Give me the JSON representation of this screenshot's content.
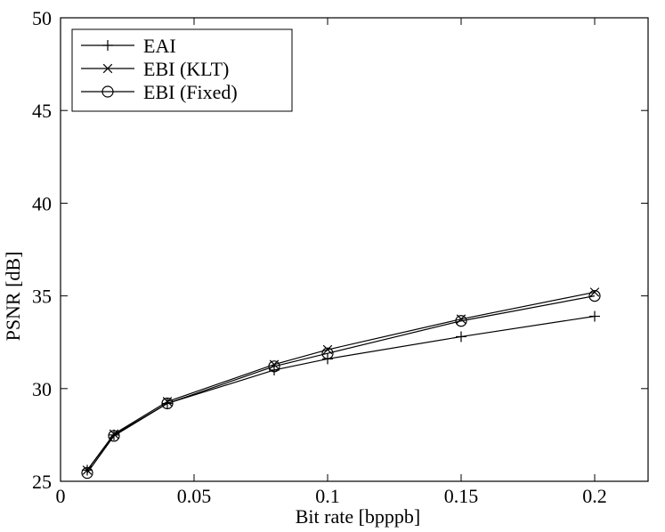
{
  "chart_data": {
    "type": "line",
    "xlabel": "Bit rate [bpppb]",
    "ylabel": "PSNR [dB]",
    "xlim": [
      0,
      0.22
    ],
    "ylim": [
      25,
      50
    ],
    "x_ticks": [
      0,
      0.05,
      0.1,
      0.15,
      0.2
    ],
    "x_tick_labels": [
      "0",
      "0.05",
      "0.1",
      "0.15",
      "0.2"
    ],
    "y_ticks": [
      25,
      30,
      35,
      40,
      45,
      50
    ],
    "y_tick_labels": [
      "25",
      "30",
      "35",
      "40",
      "45",
      "50"
    ],
    "grid": false,
    "legend_position": "top-left",
    "series": [
      {
        "name": "EAI",
        "marker": "plus",
        "color": "#000000",
        "x": [
          0.01,
          0.02,
          0.04,
          0.08,
          0.1,
          0.15,
          0.2
        ],
        "y": [
          25.6,
          27.5,
          29.2,
          31.0,
          31.6,
          32.8,
          33.9
        ]
      },
      {
        "name": "EBI (KLT)",
        "marker": "x",
        "color": "#000000",
        "x": [
          0.01,
          0.02,
          0.04,
          0.08,
          0.1,
          0.15,
          0.2
        ],
        "y": [
          25.6,
          27.55,
          29.3,
          31.3,
          32.1,
          33.75,
          35.2
        ]
      },
      {
        "name": "EBI (Fixed)",
        "marker": "circle",
        "color": "#000000",
        "x": [
          0.01,
          0.02,
          0.04,
          0.08,
          0.1,
          0.15,
          0.2
        ],
        "y": [
          25.45,
          27.45,
          29.2,
          31.2,
          31.9,
          33.65,
          35.0
        ]
      }
    ]
  }
}
